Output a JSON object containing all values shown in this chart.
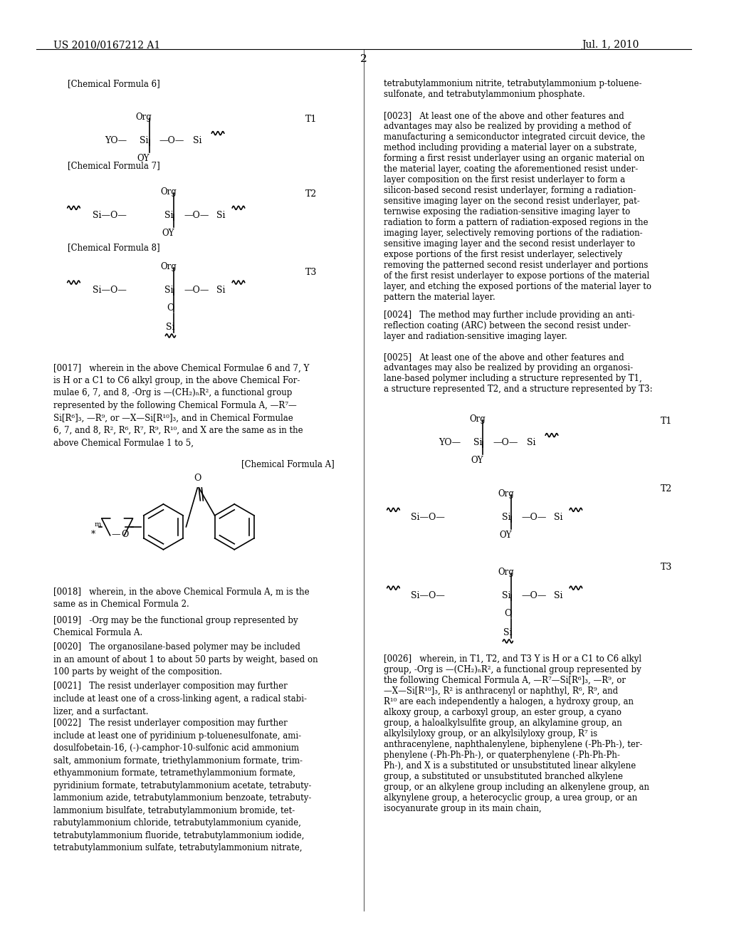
{
  "bg_color": "#ffffff",
  "text_color": "#000000",
  "header_left": "US 2010/0167212 A1",
  "header_right": "Jul. 1, 2010",
  "page_number": "2",
  "font_family": "serif"
}
